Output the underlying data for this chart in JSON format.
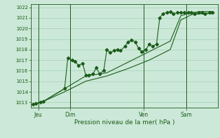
{
  "title": "",
  "xlabel": "Pression niveau de la mer( hPa )",
  "ylabel": "",
  "bg_color": "#cce8d8",
  "plot_bg_color": "#cce8d8",
  "line_color": "#1a5c1a",
  "grid_color": "#99ccaa",
  "ylim": [
    1012.5,
    1022.3
  ],
  "yticks": [
    1013,
    1014,
    1015,
    1016,
    1017,
    1018,
    1019,
    1020,
    1021,
    1022
  ],
  "day_labels": [
    "Jeu",
    "Dim",
    "Ven",
    "Sam"
  ],
  "day_positions": [
    0.5,
    3.5,
    10.5,
    14.5
  ],
  "series1_x": [
    0.0,
    0.3,
    0.7,
    1.0,
    3.0,
    3.3,
    3.7,
    4.0,
    4.3,
    4.7,
    5.0,
    5.3,
    5.7,
    6.0,
    6.3,
    6.7,
    7.0,
    7.3,
    7.7,
    8.0,
    8.3,
    8.7,
    9.0,
    9.3,
    9.7,
    10.0,
    10.3,
    10.7,
    11.0,
    11.3,
    11.7,
    12.0,
    12.3,
    12.7,
    13.0,
    13.3,
    13.7,
    14.0,
    14.3,
    14.7,
    15.0,
    15.3,
    15.7,
    16.0,
    16.3,
    16.7,
    17.0
  ],
  "series1_y": [
    1012.8,
    1012.9,
    1013.0,
    1013.1,
    1014.3,
    1017.2,
    1017.0,
    1016.9,
    1016.5,
    1016.7,
    1015.6,
    1015.6,
    1015.7,
    1016.3,
    1015.7,
    1016.0,
    1018.0,
    1017.7,
    1017.9,
    1018.0,
    1017.9,
    1018.3,
    1018.7,
    1018.9,
    1018.7,
    1018.1,
    1017.8,
    1018.0,
    1018.5,
    1018.3,
    1018.5,
    1021.0,
    1021.4,
    1021.5,
    1021.6,
    1021.4,
    1021.5,
    1021.5,
    1021.5,
    1021.5,
    1021.5,
    1021.4,
    1021.5,
    1021.5,
    1021.4,
    1021.5,
    1021.5
  ],
  "series2_x": [
    0.0,
    1.0,
    3.0,
    5.0,
    7.0,
    9.0,
    11.0,
    13.0,
    14.0,
    15.0,
    16.0,
    17.0
  ],
  "series2_y": [
    1012.8,
    1013.1,
    1014.3,
    1015.5,
    1015.8,
    1016.8,
    1017.8,
    1018.8,
    1021.2,
    1021.5,
    1021.6,
    1021.6
  ],
  "series3_x": [
    0.0,
    1.0,
    3.0,
    5.0,
    7.0,
    9.0,
    11.0,
    13.0,
    14.0,
    15.0,
    16.0,
    17.0
  ],
  "series3_y": [
    1012.8,
    1013.1,
    1014.0,
    1015.0,
    1015.5,
    1016.2,
    1017.0,
    1018.0,
    1020.8,
    1021.3,
    1021.4,
    1021.4
  ],
  "xlim": [
    -0.2,
    17.5
  ],
  "figsize": [
    3.2,
    2.0
  ],
  "dpi": 100
}
